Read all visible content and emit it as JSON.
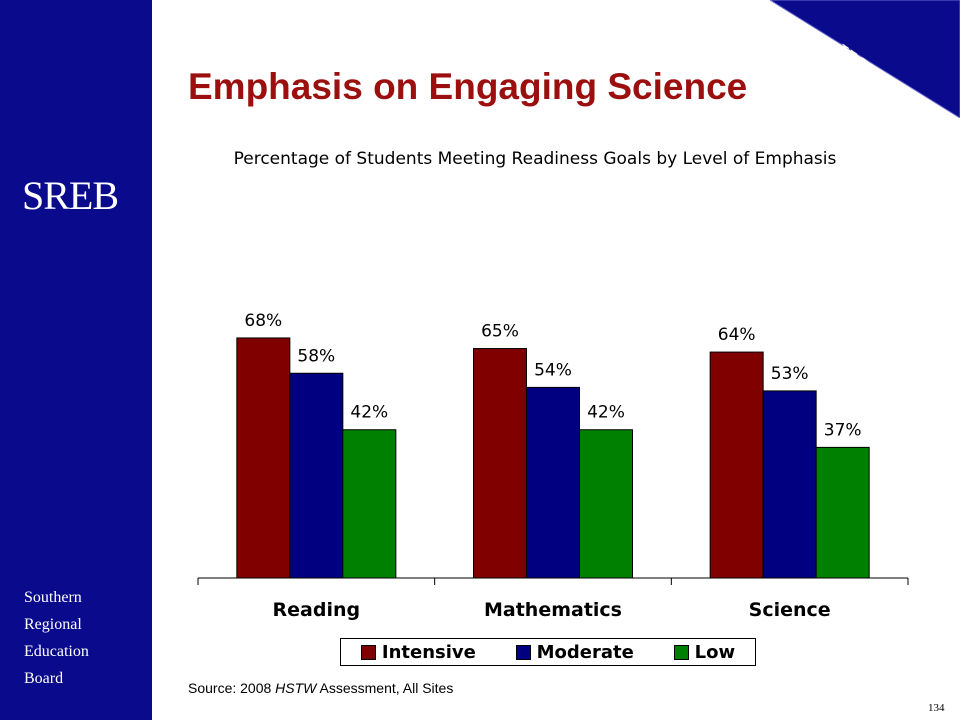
{
  "slide": {
    "title": "Emphasis on Engaging Science",
    "logo": "SREB",
    "org_lines": [
      "Southern",
      "Regional",
      "Education",
      "Board"
    ],
    "corner_label": "HSTW",
    "source_prefix": "Source: 2008 ",
    "source_emph": "HSTW",
    "source_suffix": " Assessment, All Sites",
    "slide_number": "134",
    "colors": {
      "sidebar": "#0a0a8c",
      "title": "#9b0f0f"
    }
  },
  "chart_data": {
    "type": "bar",
    "title": "Percentage of Students Meeting Readiness Goals by Level of Emphasis",
    "categories": [
      "Reading",
      "Mathematics",
      "Science"
    ],
    "series": [
      {
        "name": "Intensive",
        "values": [
          68,
          65,
          64
        ],
        "labels": [
          "68%",
          "65%",
          "64%"
        ],
        "color": "#800000"
      },
      {
        "name": "Moderate",
        "values": [
          58,
          54,
          53
        ],
        "labels": [
          "58%",
          "54%",
          "53%"
        ],
        "color": "#000080"
      },
      {
        "name": "Low",
        "values": [
          42,
          42,
          37
        ],
        "labels": [
          "42%",
          "42%",
          "37%"
        ],
        "color": "#008000"
      }
    ],
    "ylim": [
      0,
      100
    ],
    "grid": false,
    "legend": "bottom"
  }
}
